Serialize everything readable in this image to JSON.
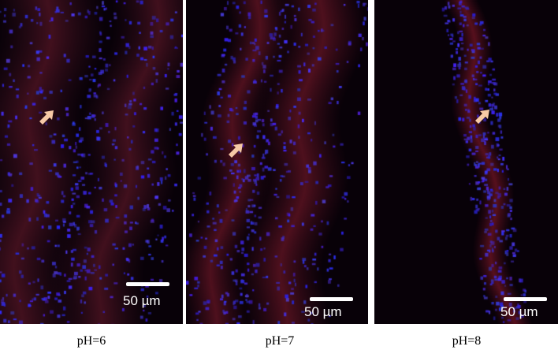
{
  "figure": {
    "panels": [
      {
        "caption": "pH=6",
        "scale_label": "50 µm",
        "red_intensity": 0.45,
        "blue_density": 0.9
      },
      {
        "caption": "pH=7",
        "scale_label": "50 µm",
        "red_intensity": 0.6,
        "blue_density": 0.7
      },
      {
        "caption": "pH=8",
        "scale_label": "50 µm",
        "red_intensity": 0.7,
        "blue_density": 0.5
      }
    ],
    "colors": {
      "nuclei": "#3a2cff",
      "stain": "#8a1a1a",
      "arrow": "#f6c9a6",
      "background": "#0a0208"
    },
    "arrow_icon": "arrow-pointer-icon"
  }
}
